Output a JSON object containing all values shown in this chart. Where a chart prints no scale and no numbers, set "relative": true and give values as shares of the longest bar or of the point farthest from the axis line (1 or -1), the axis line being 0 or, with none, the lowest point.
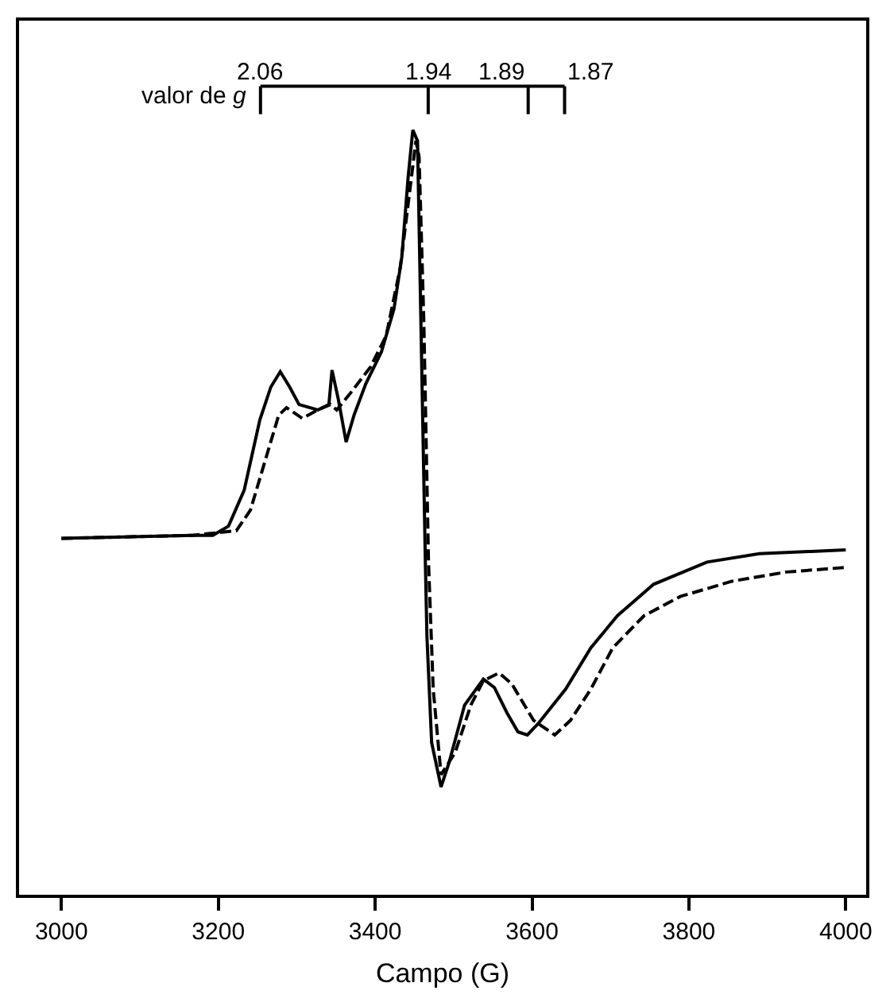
{
  "chart_data": {
    "type": "line",
    "relative": true,
    "xlabel": "Campo (G)",
    "xlim": [
      2946,
      4026
    ],
    "xticks": [
      3000,
      3200,
      3400,
      3600,
      3800,
      4000
    ],
    "tick_labels": "x",
    "marker": "none",
    "series": [
      {
        "color": "#000000",
        "line_style": "solid",
        "x": [
          3000,
          3167,
          3193,
          3213,
          3233,
          3253,
          3267,
          3279,
          3291,
          3303,
          3327,
          3341,
          3345,
          3353,
          3363,
          3373,
          3388,
          3408,
          3424,
          3434,
          3442,
          3448,
          3454,
          3458,
          3464,
          3466,
          3472,
          3484,
          3494,
          3514,
          3538,
          3552,
          3568,
          3582,
          3594,
          3608,
          3643,
          3675,
          3709,
          3755,
          3823,
          3890,
          3956,
          4000
        ],
        "values": [
          0.466,
          0.47,
          0.47,
          0.482,
          0.529,
          0.621,
          0.664,
          0.684,
          0.664,
          0.641,
          0.634,
          0.641,
          0.686,
          0.648,
          0.592,
          0.627,
          0.668,
          0.71,
          0.766,
          0.834,
          0.938,
          1.0,
          0.986,
          0.766,
          0.435,
          0.338,
          0.199,
          0.141,
          0.172,
          0.248,
          0.282,
          0.271,
          0.238,
          0.213,
          0.209,
          0.224,
          0.269,
          0.323,
          0.365,
          0.406,
          0.435,
          0.446,
          0.449,
          0.451
        ]
      },
      {
        "color": "#000000",
        "line_style": "dashed",
        "x": [
          3000,
          3167,
          3223,
          3241,
          3261,
          3277,
          3287,
          3307,
          3327,
          3343,
          3351,
          3367,
          3394,
          3414,
          3432,
          3442,
          3452,
          3456,
          3462,
          3468,
          3474,
          3484,
          3502,
          3522,
          3538,
          3558,
          3574,
          3602,
          3629,
          3649,
          3675,
          3703,
          3743,
          3789,
          3855,
          3924,
          4000
        ],
        "values": [
          0.466,
          0.47,
          0.476,
          0.503,
          0.572,
          0.627,
          0.637,
          0.623,
          0.634,
          0.641,
          0.634,
          0.654,
          0.69,
          0.731,
          0.82,
          0.903,
          0.986,
          0.965,
          0.751,
          0.435,
          0.269,
          0.157,
          0.186,
          0.248,
          0.28,
          0.29,
          0.276,
          0.228,
          0.209,
          0.228,
          0.269,
          0.323,
          0.365,
          0.39,
          0.41,
          0.422,
          0.428
        ]
      }
    ],
    "annotations": [
      "valor de g",
      "2.06",
      "1.94",
      "1.89",
      "1.87"
    ]
  }
}
